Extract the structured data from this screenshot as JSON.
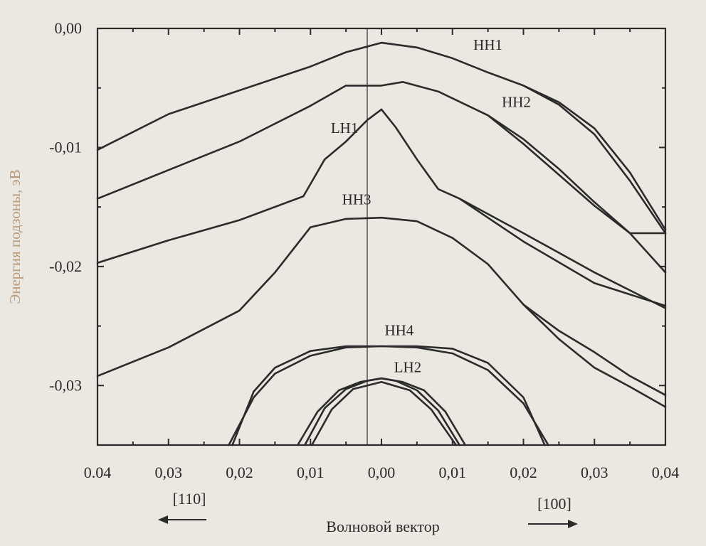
{
  "chart_data": {
    "type": "line",
    "title": "",
    "xlabel": "Волновой вектор",
    "ylabel": "Энергия подзоны, эВ",
    "xlim": [
      -0.04,
      0.04
    ],
    "ylim": [
      -0.035,
      0.0
    ],
    "x_ticks": [
      -0.04,
      -0.03,
      -0.02,
      -0.01,
      0.0,
      0.01,
      0.02,
      0.03,
      0.04
    ],
    "x_tick_labels": [
      "0.04",
      "0,03",
      "0,02",
      "0,01",
      "0,00",
      "0,01",
      "0,02",
      "0,03",
      "0,04"
    ],
    "y_ticks": [
      0.0,
      -0.01,
      -0.02,
      -0.03
    ],
    "y_tick_labels": [
      "0,00",
      "-0,01",
      "-0,02",
      "-0,03"
    ],
    "direction_labels": {
      "left": "[110]",
      "right": "[100]"
    },
    "grid": false,
    "series": [
      {
        "name": "HH1",
        "label_at": [
          0.015,
          -0.0015
        ],
        "x": [
          -0.04,
          -0.03,
          -0.02,
          -0.01,
          -0.005,
          0.0,
          0.005,
          0.01,
          0.015,
          0.02,
          0.025,
          0.03,
          0.035,
          0.04
        ],
        "y": [
          -0.0102,
          -0.0072,
          -0.0052,
          -0.0032,
          -0.002,
          -0.0012,
          -0.0016,
          -0.0025,
          -0.0037,
          -0.0048,
          -0.0062,
          -0.0084,
          -0.0121,
          -0.0169
        ]
      },
      {
        "name": "",
        "x": [
          0.02,
          0.025,
          0.03,
          0.035,
          0.04
        ],
        "y": [
          -0.0048,
          -0.0064,
          -0.0089,
          -0.0128,
          -0.0172
        ]
      },
      {
        "name": "HH2",
        "label_at": [
          0.019,
          -0.0063
        ],
        "x": [
          -0.04,
          -0.03,
          -0.02,
          -0.01,
          -0.005,
          0.0,
          0.003,
          0.008,
          0.015,
          0.02,
          0.025,
          0.03,
          0.035,
          0.04
        ],
        "y": [
          -0.0143,
          -0.0119,
          -0.0095,
          -0.0065,
          -0.0048,
          -0.0048,
          -0.0045,
          -0.0053,
          -0.0073,
          -0.0093,
          -0.0118,
          -0.0146,
          -0.0172,
          -0.0205
        ]
      },
      {
        "name": "",
        "x": [
          0.015,
          0.02,
          0.025,
          0.03,
          0.035,
          0.04
        ],
        "y": [
          -0.0073,
          -0.0097,
          -0.0123,
          -0.0149,
          -0.0172,
          -0.0172
        ]
      },
      {
        "name": "LH1",
        "label_at": [
          -0.0052,
          -0.0085
        ],
        "x": [
          -0.04,
          -0.03,
          -0.02,
          -0.011,
          -0.008,
          -0.005,
          -0.002,
          0.0,
          0.002,
          0.005,
          0.008,
          0.011,
          0.02,
          0.03,
          0.04
        ],
        "y": [
          -0.0197,
          -0.0178,
          -0.0161,
          -0.0141,
          -0.011,
          -0.0095,
          -0.0077,
          -0.0068,
          -0.0083,
          -0.011,
          -0.0135,
          -0.0143,
          -0.0172,
          -0.0205,
          -0.0235
        ]
      },
      {
        "name": "",
        "x": [
          0.011,
          0.02,
          0.03,
          0.04
        ],
        "y": [
          -0.0143,
          -0.0179,
          -0.0214,
          -0.0233
        ]
      },
      {
        "name": "HH3",
        "label_at": [
          -0.0035,
          -0.0145
        ],
        "x": [
          -0.04,
          -0.03,
          -0.02,
          -0.015,
          -0.01,
          -0.005,
          0.0,
          0.005,
          0.01,
          0.015,
          0.02,
          0.025,
          0.03,
          0.035,
          0.04
        ],
        "y": [
          -0.0292,
          -0.0268,
          -0.0237,
          -0.0205,
          -0.0167,
          -0.016,
          -0.0159,
          -0.0162,
          -0.0176,
          -0.0198,
          -0.0232,
          -0.0254,
          -0.0272,
          -0.0292,
          -0.0308
        ]
      },
      {
        "name": "",
        "x": [
          0.02,
          0.025,
          0.03,
          0.035,
          0.04
        ],
        "y": [
          -0.0232,
          -0.0261,
          -0.0285,
          -0.0301,
          -0.0318
        ]
      },
      {
        "name": "HH4",
        "label_at": [
          0.0025,
          -0.0255
        ],
        "x": [
          -0.0215,
          -0.018,
          -0.015,
          -0.01,
          -0.005,
          0.0,
          0.005,
          0.01,
          0.015,
          0.02,
          0.0235
        ],
        "y": [
          -0.035,
          -0.031,
          -0.029,
          -0.0275,
          -0.0268,
          -0.0267,
          -0.0268,
          -0.0273,
          -0.0287,
          -0.0315,
          -0.035
        ]
      },
      {
        "name": "",
        "x": [
          -0.021,
          -0.018,
          -0.015,
          -0.01,
          -0.005,
          0.0,
          0.005,
          0.01,
          0.015,
          0.02,
          0.023
        ],
        "y": [
          -0.035,
          -0.0305,
          -0.0285,
          -0.0271,
          -0.0267,
          -0.0267,
          -0.0267,
          -0.0269,
          -0.0281,
          -0.031,
          -0.035
        ]
      },
      {
        "name": "LH2",
        "label_at": [
          0.0037,
          -0.0286
        ],
        "x": [
          -0.0118,
          -0.009,
          -0.006,
          -0.003,
          0.0,
          0.003,
          0.006,
          0.009,
          0.0118
        ],
        "y": [
          -0.035,
          -0.0322,
          -0.0304,
          -0.0297,
          -0.0294,
          -0.0297,
          -0.0304,
          -0.0322,
          -0.035
        ]
      },
      {
        "name": "",
        "x": [
          -0.0108,
          -0.008,
          -0.005,
          -0.002,
          0.0,
          0.002,
          0.005,
          0.008,
          0.011
        ],
        "y": [
          -0.035,
          -0.0319,
          -0.0303,
          -0.0296,
          -0.0294,
          -0.0296,
          -0.0304,
          -0.0321,
          -0.035
        ]
      },
      {
        "name": "",
        "x": [
          -0.0098,
          -0.007,
          -0.004,
          0.0,
          0.004,
          0.007,
          0.0105
        ],
        "y": [
          -0.035,
          -0.032,
          -0.0303,
          -0.0297,
          -0.0304,
          -0.032,
          -0.035
        ]
      }
    ]
  }
}
